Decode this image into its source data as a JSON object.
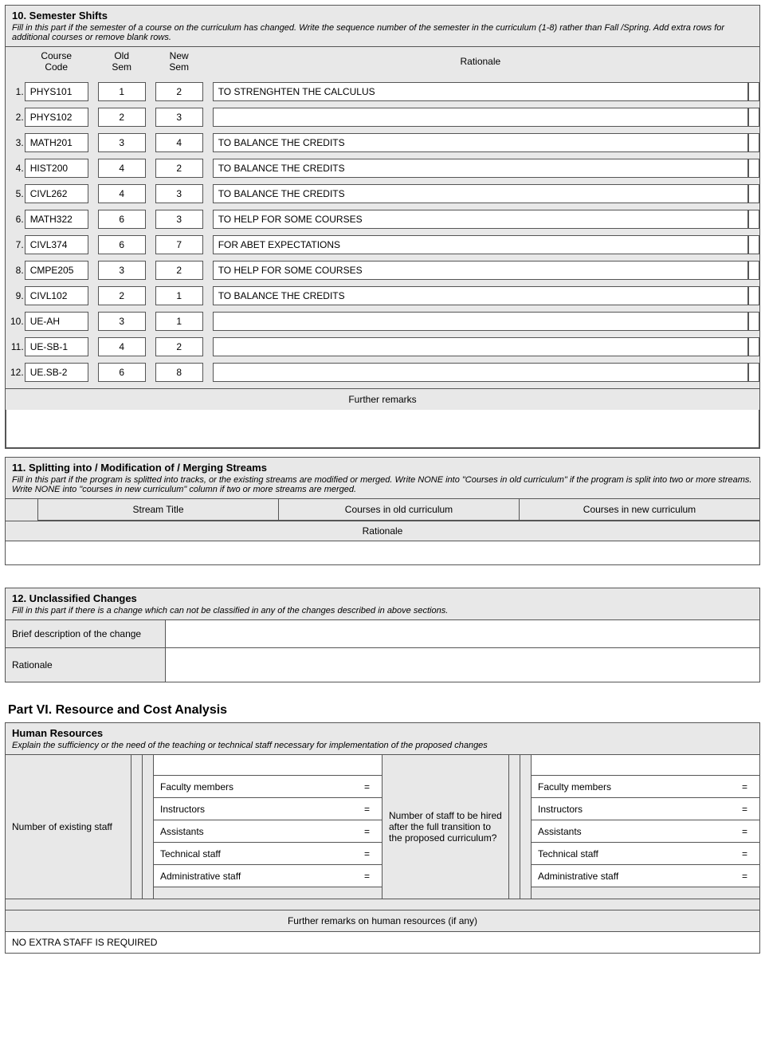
{
  "s10": {
    "title": "10. Semester Shifts",
    "desc": "Fill in this part if the semester of a course on the curriculum has changed. Write the sequence number of the semester in the curriculum (1-8) rather than Fall /Spring. Add extra rows for additional courses or remove blank rows.",
    "headers": {
      "code": "Course\nCode",
      "old": "Old\nSem",
      "new": "New\nSem",
      "rat": "Rationale"
    },
    "rows": [
      {
        "n": "1.",
        "code": "PHYS101",
        "old": "1",
        "new": "2",
        "rat": "TO STRENGHTEN THE CALCULUS"
      },
      {
        "n": "2.",
        "code": "PHYS102",
        "old": "2",
        "new": "3",
        "rat": ""
      },
      {
        "n": "3.",
        "code": "MATH201",
        "old": "3",
        "new": "4",
        "rat": "TO BALANCE THE CREDITS"
      },
      {
        "n": "4.",
        "code": "HIST200",
        "old": "4",
        "new": "2",
        "rat": "TO BALANCE THE CREDITS"
      },
      {
        "n": "5.",
        "code": "CIVL262",
        "old": "4",
        "new": "3",
        "rat": "TO BALANCE THE CREDITS"
      },
      {
        "n": "6.",
        "code": "MATH322",
        "old": "6",
        "new": "3",
        "rat": "TO HELP FOR SOME COURSES"
      },
      {
        "n": "7.",
        "code": "CIVL374",
        "old": "6",
        "new": "7",
        "rat": "FOR ABET EXPECTATIONS"
      },
      {
        "n": "8.",
        "code": "CMPE205",
        "old": "3",
        "new": "2",
        "rat": "TO HELP FOR SOME COURSES"
      },
      {
        "n": "9.",
        "code": "CIVL102",
        "old": "2",
        "new": "1",
        "rat": "TO BALANCE THE CREDITS"
      },
      {
        "n": "10.",
        "code": "UE-AH",
        "old": "3",
        "new": "1",
        "rat": ""
      },
      {
        "n": "11.",
        "code": "UE-SB-1",
        "old": "4",
        "new": "2",
        "rat": ""
      },
      {
        "n": "12.",
        "code": "UE.SB-2",
        "old": "6",
        "new": "8",
        "rat": ""
      }
    ],
    "further": "Further remarks"
  },
  "s11": {
    "title": "11. Splitting into / Modification of / Merging Streams",
    "desc": "Fill in this part if the program is splitted into tracks, or the existing streams are modified or merged. Write NONE into \"Courses in old curriculum\" if the program is split into two or more streams. Write NONE into \"courses in new curriculum\" column if two or more streams are merged.",
    "h1": "Stream Title",
    "h2": "Courses in old curriculum",
    "h3": "Courses in new curriculum",
    "rat": "Rationale"
  },
  "s12": {
    "title": "12. Unclassified Changes",
    "desc": "Fill in this part if there is a change which can not be classified in any of the changes described in above sections.",
    "l1": "Brief description of the change",
    "l2": "Rationale"
  },
  "p6": {
    "heading": "Part VI. Resource and Cost Analysis",
    "hr": {
      "title": "Human Resources",
      "desc": "Explain the sufficiency or the need of the teaching or technical staff necessary for implementation of the proposed changes",
      "left_label": "Number of existing staff",
      "mid_label": "Number of staff to be hired after the full transition to the proposed curriculum?",
      "roles": [
        "Faculty members",
        "Instructors",
        "Assistants",
        "Technical staff",
        "Administrative staff"
      ],
      "further": "Further remarks on human resources (if any)",
      "further_body": "NO EXTRA STAFF IS REQUIRED"
    }
  }
}
